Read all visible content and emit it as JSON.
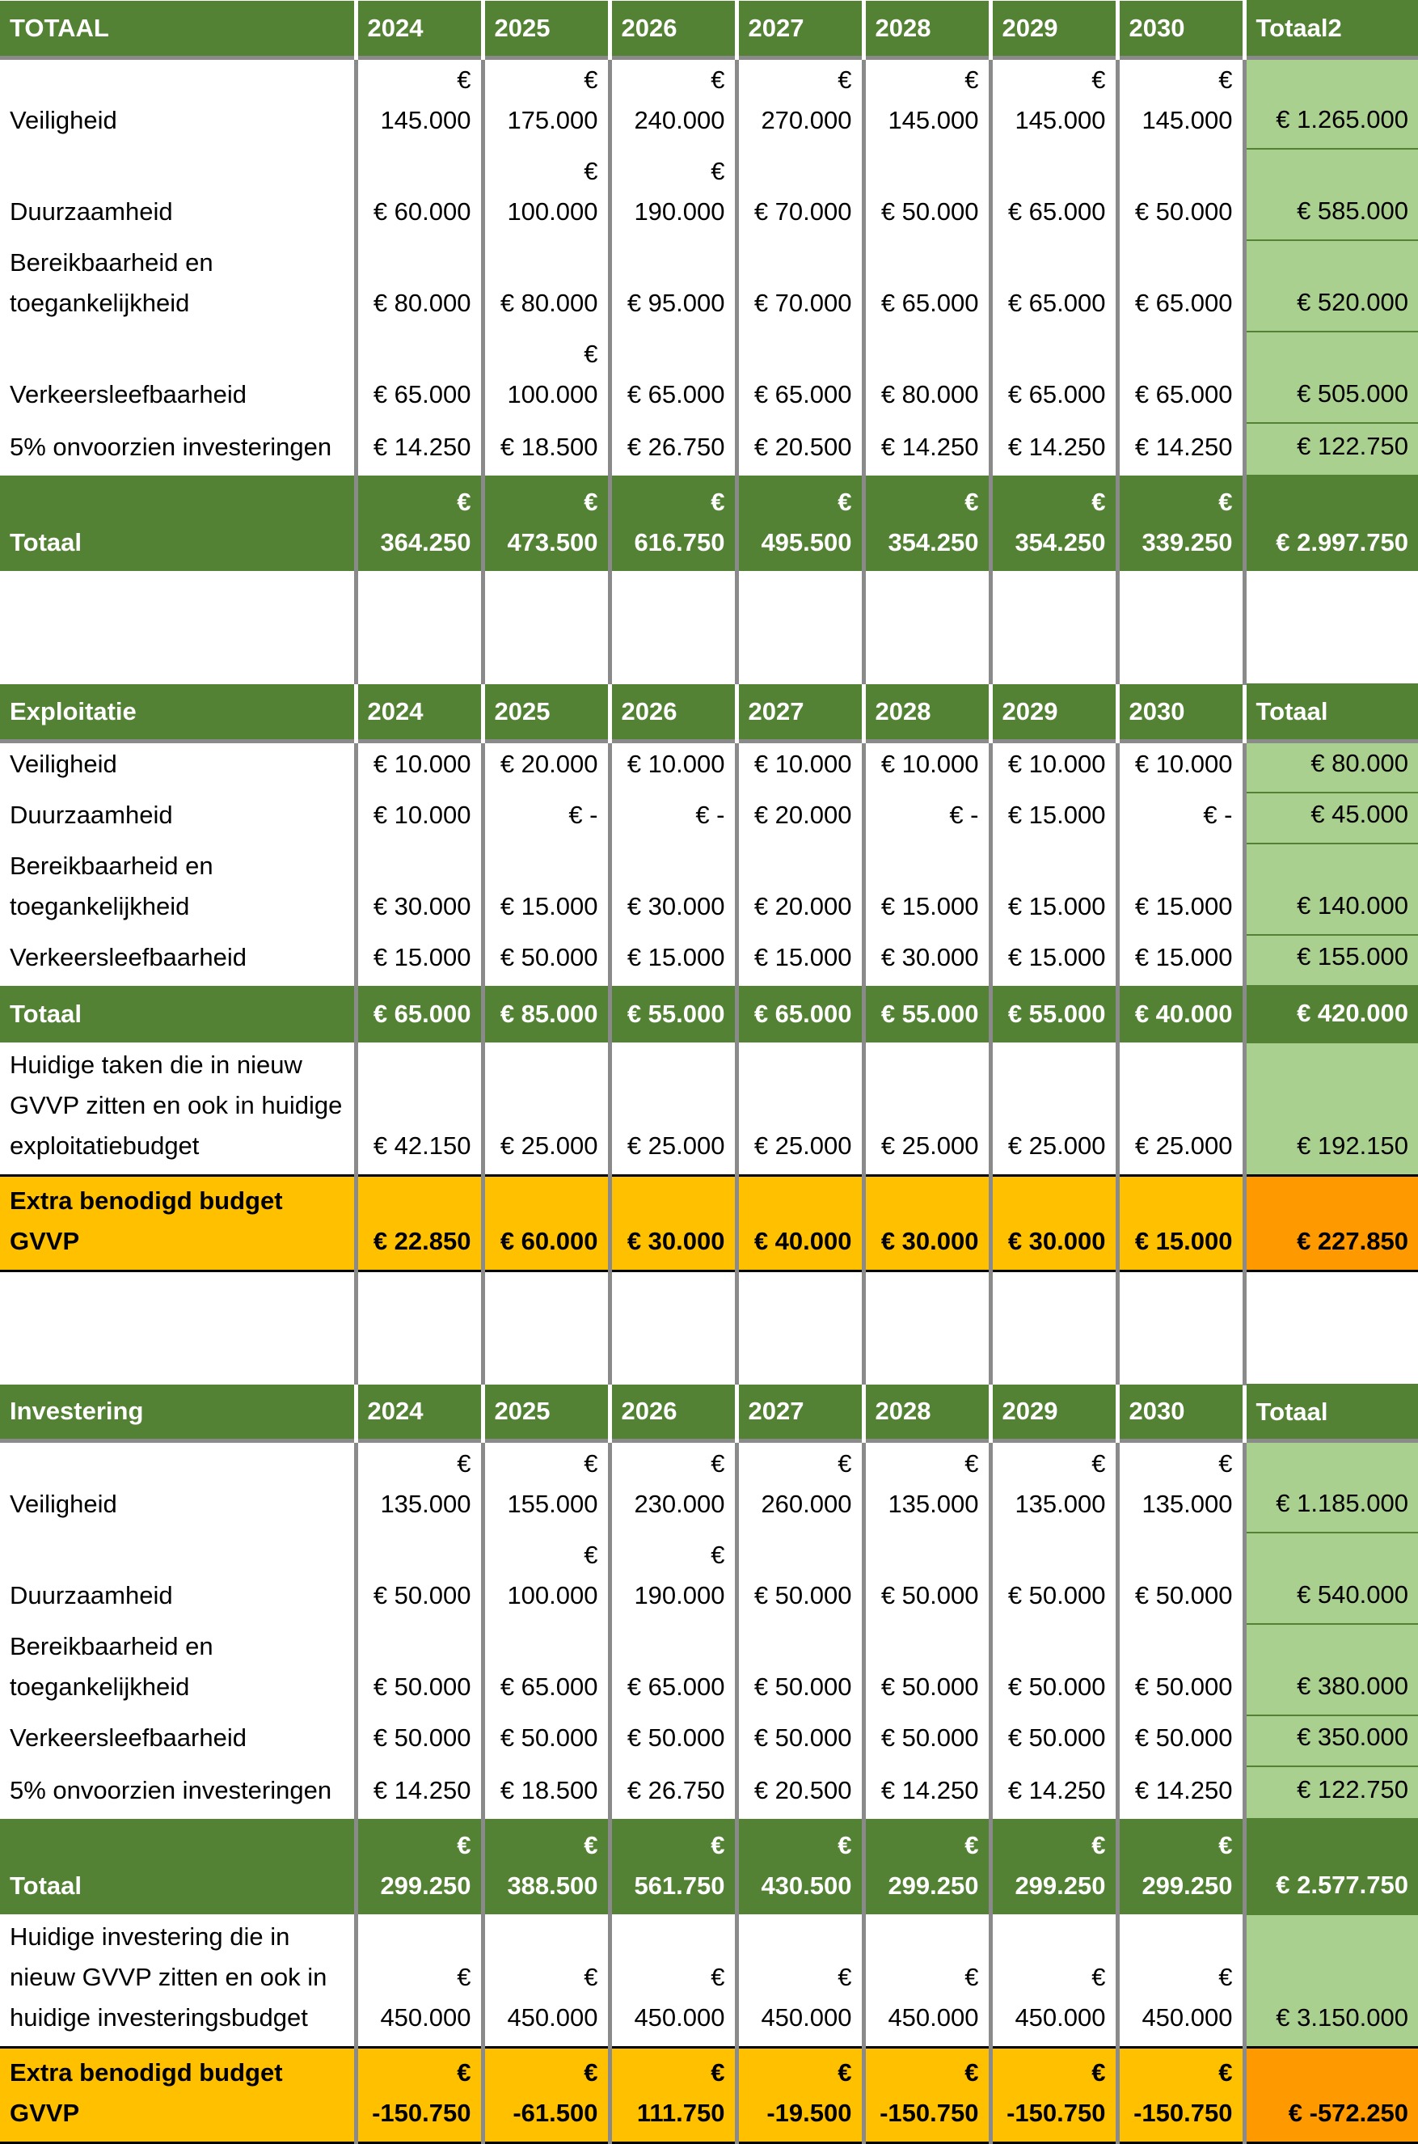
{
  "sections": [
    {
      "id": "totaal",
      "header": [
        "TOTAAL",
        "2024",
        "2025",
        "2026",
        "2027",
        "2028",
        "2029",
        "2030",
        "Totaal2"
      ],
      "rows": [
        {
          "type": "data",
          "height": 113,
          "cells": [
            "Veiligheid",
            "€ 145.000",
            "€ 175.000",
            "€ 240.000",
            "€ 270.000",
            "€ 145.000",
            "€ 145.000",
            "€ 145.000",
            "€ 1.265.000"
          ]
        },
        {
          "type": "data",
          "height": 113,
          "cells": [
            "Duurzaamheid",
            "€ 60.000",
            "€ 100.000",
            "€ 190.000",
            "€ 70.000",
            "€ 50.000",
            "€ 65.000",
            "€ 50.000",
            "€ 585.000"
          ]
        },
        {
          "type": "data",
          "height": 113,
          "cells": [
            "Bereikbaarheid en toegankelijkheid",
            "€ 80.000",
            "€ 80.000",
            "€ 95.000",
            "€ 70.000",
            "€ 65.000",
            "€ 65.000",
            "€ 65.000",
            "€ 520.000"
          ]
        },
        {
          "type": "data",
          "height": 113,
          "cells": [
            "Verkeersleefbaarheid",
            "€ 65.000",
            "€ 100.000",
            "€ 65.000",
            "€ 65.000",
            "€ 80.000",
            "€ 65.000",
            "€ 65.000",
            "€ 505.000"
          ]
        },
        {
          "type": "data",
          "height": 65,
          "cells": [
            "5% onvoorzien investeringen",
            "€ 14.250",
            "€ 18.500",
            "€ 26.750",
            "€ 20.500",
            "€ 14.250",
            "€ 14.250",
            "€ 14.250",
            "€ 122.750"
          ]
        },
        {
          "type": "total",
          "height": 118,
          "cells": [
            "Totaal",
            "€ 364.250",
            "€ 473.500",
            "€ 616.750",
            "€ 495.500",
            "€ 354.250",
            "€ 354.250",
            "€ 339.250",
            "€ 2.997.750"
          ]
        }
      ]
    },
    {
      "id": "exploitatie",
      "header": [
        "Exploitatie",
        "2024",
        "2025",
        "2026",
        "2027",
        "2028",
        "2029",
        "2030",
        "Totaal"
      ],
      "rows": [
        {
          "type": "data",
          "height": 63,
          "cells": [
            "Veiligheid",
            "€ 10.000",
            "€ 20.000",
            "€ 10.000",
            "€ 10.000",
            "€ 10.000",
            "€ 10.000",
            "€ 10.000",
            "€ 80.000"
          ]
        },
        {
          "type": "data",
          "height": 63,
          "cells": [
            "Duurzaamheid",
            "€ 10.000",
            "€ -",
            "€ -",
            "€ 20.000",
            "€ -",
            "€ 15.000",
            "€ -",
            "€ 45.000"
          ]
        },
        {
          "type": "data",
          "height": 113,
          "cells": [
            "Bereikbaarheid en toegankelijkheid",
            "€ 30.000",
            "€ 15.000",
            "€ 30.000",
            "€ 20.000",
            "€ 15.000",
            "€ 15.000",
            "€ 15.000",
            "€ 140.000"
          ]
        },
        {
          "type": "data",
          "height": 63,
          "cells": [
            "Verkeersleefbaarheid",
            "€ 15.000",
            "€ 50.000",
            "€ 15.000",
            "€ 15.000",
            "€ 30.000",
            "€ 15.000",
            "€ 15.000",
            "€ 155.000"
          ]
        },
        {
          "type": "total",
          "height": 70,
          "cells": [
            "Totaal",
            "€ 65.000",
            "€ 85.000",
            "€ 55.000",
            "€ 65.000",
            "€ 55.000",
            "€ 55.000",
            "€ 40.000",
            "€ 420.000"
          ]
        },
        {
          "type": "data",
          "height": 165,
          "cells": [
            "Huidige taken die in nieuw GVVP zitten en ook in huidige exploitatiebudget",
            "€ 42.150",
            "€ 25.000",
            "€ 25.000",
            "€ 25.000",
            "€ 25.000",
            "€ 25.000",
            "€ 25.000",
            "€ 192.150"
          ]
        },
        {
          "type": "extra",
          "height": 118,
          "cells": [
            "Extra benodigd budget GVVP",
            "€ 22.850",
            "€ 60.000",
            "€ 30.000",
            "€ 40.000",
            "€ 30.000",
            "€ 30.000",
            "€ 15.000",
            "€ 227.850"
          ]
        }
      ]
    },
    {
      "id": "investering",
      "header": [
        "Investering",
        "2024",
        "2025",
        "2026",
        "2027",
        "2028",
        "2029",
        "2030",
        "Totaal"
      ],
      "rows": [
        {
          "type": "data",
          "height": 113,
          "cells": [
            "Veiligheid",
            "€ 135.000",
            "€ 155.000",
            "€ 230.000",
            "€ 260.000",
            "€ 135.000",
            "€ 135.000",
            "€ 135.000",
            "€ 1.185.000"
          ]
        },
        {
          "type": "data",
          "height": 113,
          "cells": [
            "Duurzaamheid",
            "€ 50.000",
            "€ 100.000",
            "€ 190.000",
            "€ 50.000",
            "€ 50.000",
            "€ 50.000",
            "€ 50.000",
            "€ 540.000"
          ]
        },
        {
          "type": "data",
          "height": 113,
          "cells": [
            "Bereikbaarheid en toegankelijkheid",
            "€ 50.000",
            "€ 65.000",
            "€ 65.000",
            "€ 50.000",
            "€ 50.000",
            "€ 50.000",
            "€ 50.000",
            "€ 380.000"
          ]
        },
        {
          "type": "data",
          "height": 63,
          "cells": [
            "Verkeersleefbaarheid",
            "€ 50.000",
            "€ 50.000",
            "€ 50.000",
            "€ 50.000",
            "€ 50.000",
            "€ 50.000",
            "€ 50.000",
            "€ 350.000"
          ]
        },
        {
          "type": "data",
          "height": 65,
          "cells": [
            "5% onvoorzien investeringen",
            "€ 14.250",
            "€ 18.500",
            "€ 26.750",
            "€ 20.500",
            "€ 14.250",
            "€ 14.250",
            "€ 14.250",
            "€ 122.750"
          ]
        },
        {
          "type": "total",
          "height": 118,
          "cells": [
            "Totaal",
            "€ 299.250",
            "€ 388.500",
            "€ 561.750",
            "€ 430.500",
            "€ 299.250",
            "€ 299.250",
            "€ 299.250",
            "€ 2.577.750"
          ]
        },
        {
          "type": "data",
          "height": 165,
          "cells": [
            "Huidige investering die in nieuw GVVP zitten en ook in huidige investeringsbudget",
            "€ 450.000",
            "€ 450.000",
            "€ 450.000",
            "€ 450.000",
            "€ 450.000",
            "€ 450.000",
            "€ 450.000",
            "€ 3.150.000"
          ]
        },
        {
          "type": "extra",
          "height": 118,
          "cells": [
            "Extra benodigd budget GVVP",
            "€ -150.750",
            "€ -61.500",
            "€ 111.750",
            "€ -19.500",
            "€ -150.750",
            "€ -150.750",
            "€ -150.750",
            "€ -572.250"
          ]
        }
      ]
    }
  ]
}
